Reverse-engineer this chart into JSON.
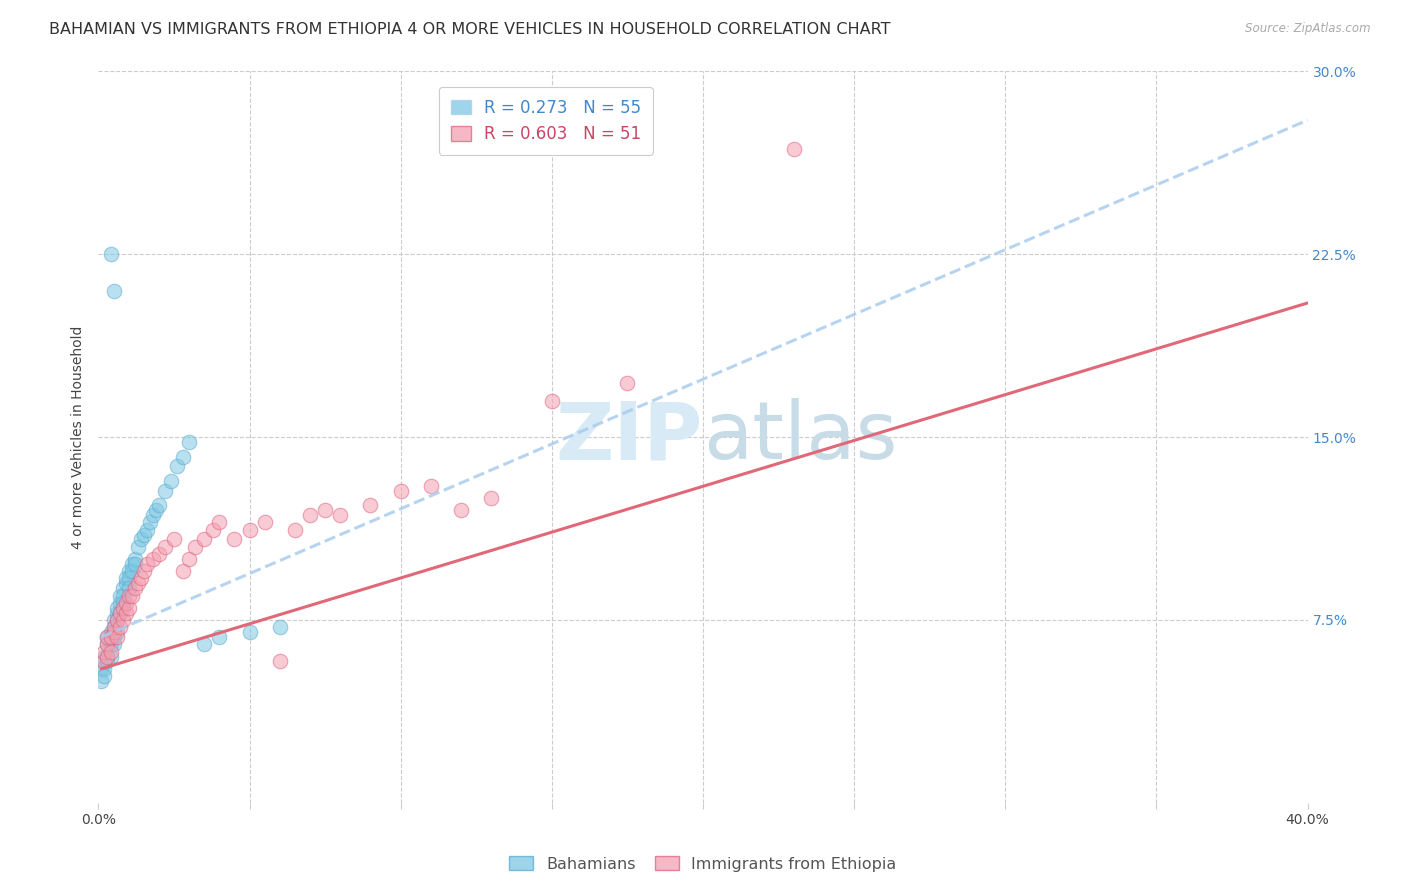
{
  "title": "BAHAMIAN VS IMMIGRANTS FROM ETHIOPIA 4 OR MORE VEHICLES IN HOUSEHOLD CORRELATION CHART",
  "source": "Source: ZipAtlas.com",
  "ylabel": "4 or more Vehicles in Household",
  "xmin": 0.0,
  "xmax": 0.4,
  "ymin": 0.0,
  "ymax": 0.3,
  "legend1_label": "R = 0.273   N = 55",
  "legend2_label": "R = 0.603   N = 51",
  "legend_group1": "Bahamians",
  "legend_group2": "Immigrants from Ethiopia",
  "color_blue": "#7ec8e3",
  "color_blue_edge": "#5aabcf",
  "color_pink": "#f4a0b0",
  "color_pink_edge": "#e06080",
  "color_blue_line": "#aaccee",
  "color_pink_line": "#e06878",
  "watermark_color": "#d8eaf5",
  "title_fontsize": 11.5,
  "axis_label_fontsize": 10,
  "tick_fontsize": 10,
  "blue_x": [
    0.001,
    0.001,
    0.002,
    0.002,
    0.002,
    0.003,
    0.003,
    0.003,
    0.003,
    0.004,
    0.004,
    0.004,
    0.004,
    0.005,
    0.005,
    0.005,
    0.005,
    0.006,
    0.006,
    0.006,
    0.006,
    0.007,
    0.007,
    0.007,
    0.008,
    0.008,
    0.008,
    0.009,
    0.009,
    0.01,
    0.01,
    0.01,
    0.011,
    0.011,
    0.012,
    0.012,
    0.013,
    0.014,
    0.015,
    0.016,
    0.017,
    0.018,
    0.019,
    0.02,
    0.022,
    0.024,
    0.026,
    0.028,
    0.03,
    0.035,
    0.04,
    0.05,
    0.06,
    0.004,
    0.005
  ],
  "blue_y": [
    0.055,
    0.05,
    0.06,
    0.055,
    0.052,
    0.068,
    0.065,
    0.06,
    0.058,
    0.07,
    0.068,
    0.065,
    0.06,
    0.072,
    0.075,
    0.068,
    0.065,
    0.078,
    0.08,
    0.075,
    0.07,
    0.082,
    0.085,
    0.078,
    0.088,
    0.085,
    0.082,
    0.09,
    0.092,
    0.095,
    0.092,
    0.088,
    0.098,
    0.095,
    0.1,
    0.098,
    0.105,
    0.108,
    0.11,
    0.112,
    0.115,
    0.118,
    0.12,
    0.122,
    0.128,
    0.132,
    0.138,
    0.142,
    0.148,
    0.065,
    0.068,
    0.07,
    0.072,
    0.225,
    0.21
  ],
  "pink_x": [
    0.002,
    0.002,
    0.003,
    0.003,
    0.003,
    0.004,
    0.004,
    0.005,
    0.005,
    0.006,
    0.006,
    0.007,
    0.007,
    0.008,
    0.008,
    0.009,
    0.009,
    0.01,
    0.01,
    0.011,
    0.012,
    0.013,
    0.014,
    0.015,
    0.016,
    0.018,
    0.02,
    0.022,
    0.025,
    0.028,
    0.03,
    0.032,
    0.035,
    0.038,
    0.04,
    0.045,
    0.05,
    0.055,
    0.06,
    0.065,
    0.07,
    0.075,
    0.08,
    0.09,
    0.1,
    0.11,
    0.12,
    0.13,
    0.15,
    0.175,
    0.23
  ],
  "pink_y": [
    0.058,
    0.062,
    0.06,
    0.065,
    0.068,
    0.062,
    0.068,
    0.07,
    0.072,
    0.068,
    0.075,
    0.072,
    0.078,
    0.075,
    0.08,
    0.078,
    0.082,
    0.08,
    0.085,
    0.085,
    0.088,
    0.09,
    0.092,
    0.095,
    0.098,
    0.1,
    0.102,
    0.105,
    0.108,
    0.095,
    0.1,
    0.105,
    0.108,
    0.112,
    0.115,
    0.108,
    0.112,
    0.115,
    0.058,
    0.112,
    0.118,
    0.12,
    0.118,
    0.122,
    0.128,
    0.13,
    0.12,
    0.125,
    0.165,
    0.172,
    0.268
  ],
  "blue_line_x": [
    0.001,
    0.4
  ],
  "blue_line_y": [
    0.068,
    0.28
  ],
  "pink_line_x": [
    0.001,
    0.4
  ],
  "pink_line_y": [
    0.055,
    0.205
  ]
}
